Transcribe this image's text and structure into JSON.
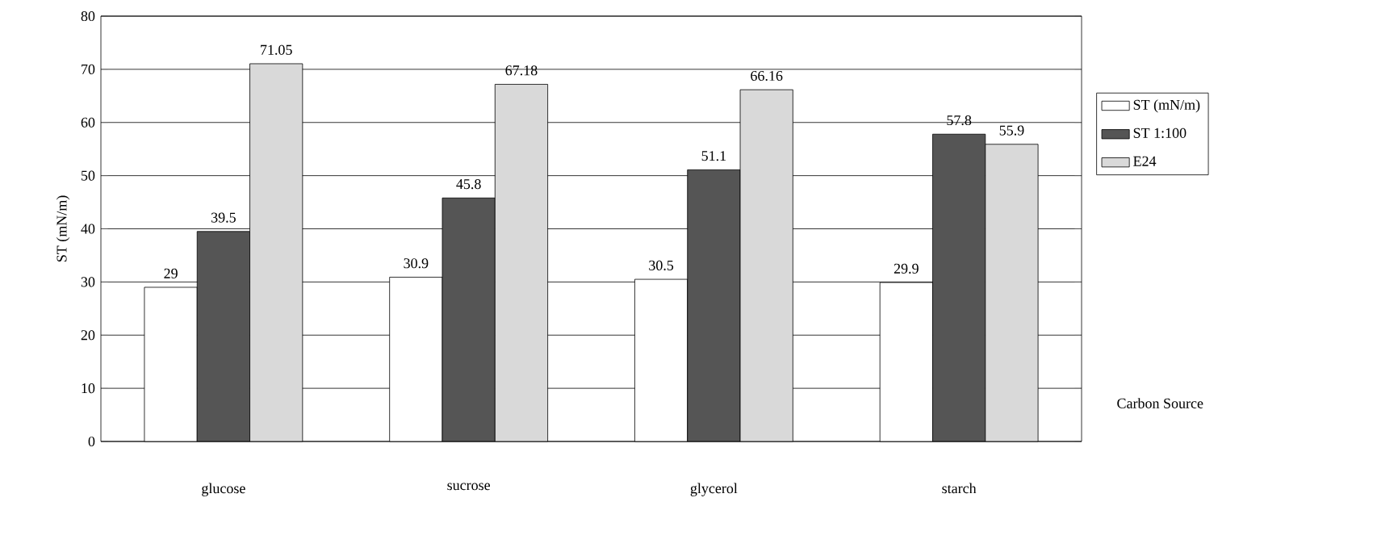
{
  "chart_data": {
    "type": "bar",
    "xlabel": "Carbon Source",
    "ylabel": "ST (mN/m)",
    "categories": [
      "glucose",
      "sucrose",
      "glycerol",
      "starch"
    ],
    "series": [
      {
        "name": "ST (mN/m)",
        "color": "#ffffff",
        "values": [
          29,
          30.9,
          30.5,
          29.9
        ]
      },
      {
        "name": "ST 1:100",
        "color": "#555555",
        "values": [
          39.5,
          45.8,
          51.1,
          57.8
        ]
      },
      {
        "name": "E24",
        "color": "#d9d9d9",
        "values": [
          71.05,
          67.18,
          66.16,
          55.9
        ]
      }
    ],
    "ylim": [
      0,
      80
    ],
    "yticks": [
      0,
      10,
      20,
      30,
      40,
      50,
      60,
      70,
      80
    ],
    "grid": "y",
    "legend": "right",
    "data_labels": true
  }
}
